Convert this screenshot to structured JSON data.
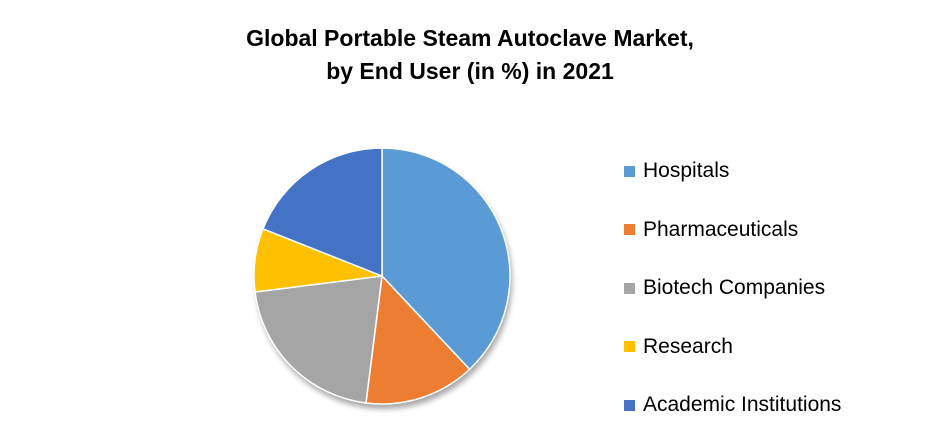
{
  "title_line1": "Global Portable Steam Autoclave Market,",
  "title_line2": "by End User (in %) in 2021",
  "chart_data": {
    "type": "pie",
    "title": "Global Portable Steam Autoclave Market, by End User (in %) in 2021",
    "legend_position": "right",
    "slices": [
      {
        "label": "Hospitals",
        "value": 38,
        "color": "#5b9bd5"
      },
      {
        "label": "Pharmaceuticals",
        "value": 14,
        "color": "#ed7d31"
      },
      {
        "label": "Biotech Companies",
        "value": 21,
        "color": "#a5a5a5"
      },
      {
        "label": "Research",
        "value": 8,
        "color": "#ffc000"
      },
      {
        "label": "Academic Institutions",
        "value": 19,
        "color": "#4472c4"
      }
    ]
  }
}
